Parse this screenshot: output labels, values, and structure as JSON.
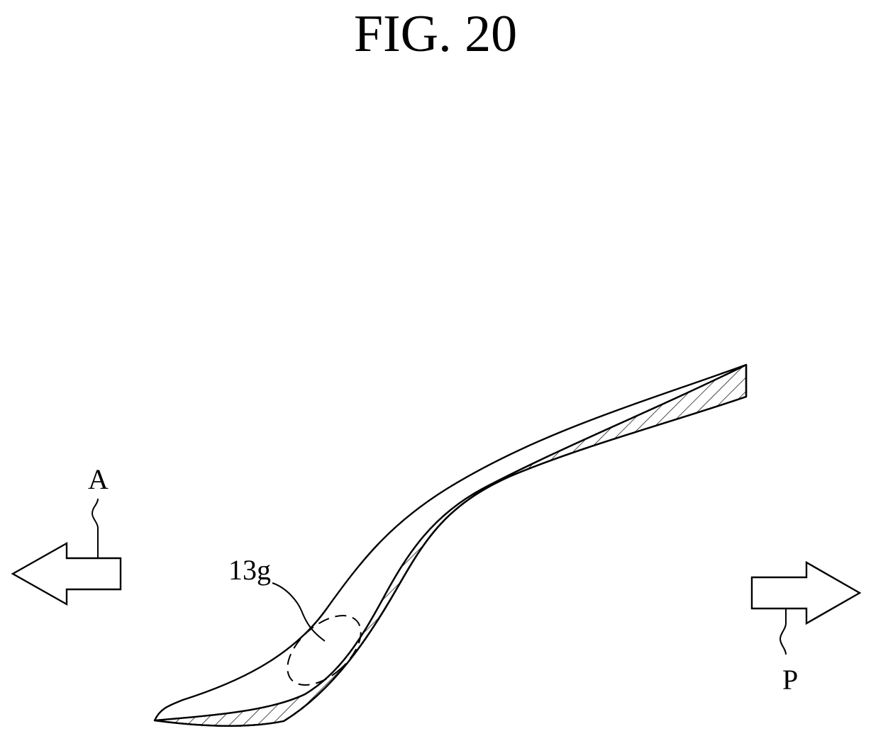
{
  "figure": {
    "title": "FIG. 20"
  },
  "labels": {
    "anterior": "A",
    "posterior": "P",
    "region": "13g"
  },
  "colors": {
    "ink": "#000000",
    "paper": "#ffffff"
  }
}
